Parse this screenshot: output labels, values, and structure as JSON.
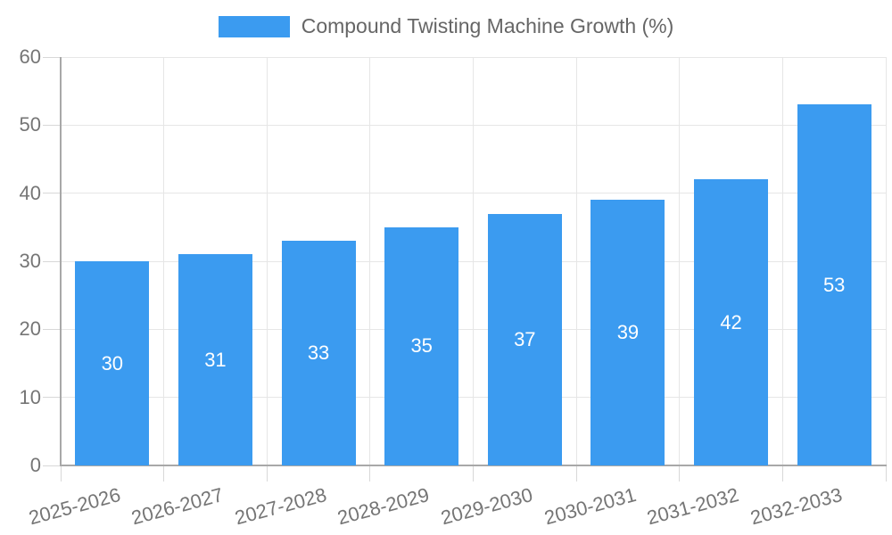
{
  "chart_data": {
    "type": "bar",
    "title": "Compound Twisting Machine Growth (%)",
    "legend_position": "top",
    "categories": [
      "2025-2026",
      "2026-2027",
      "2027-2028",
      "2028-2029",
      "2029-2030",
      "2030-2031",
      "2031-2032",
      "2032-2033"
    ],
    "values": [
      30,
      31,
      33,
      35,
      37,
      39,
      42,
      53
    ],
    "xlabel": "",
    "ylabel": "",
    "ylim": [
      0,
      60
    ],
    "yticks": [
      0,
      10,
      20,
      30,
      40,
      50,
      60
    ],
    "grid": true,
    "bar_value_labels_shown": true,
    "x_label_rotation_deg": -15,
    "colors": {
      "bar": "#3b9bf0",
      "bar_label": "#ffffff",
      "axis_text": "#757575",
      "legend_text": "#666666",
      "gridline": "#e6e6e6",
      "tick": "#d8d8d8",
      "axis_line": "#a8a8a8",
      "background": "#ffffff"
    }
  }
}
